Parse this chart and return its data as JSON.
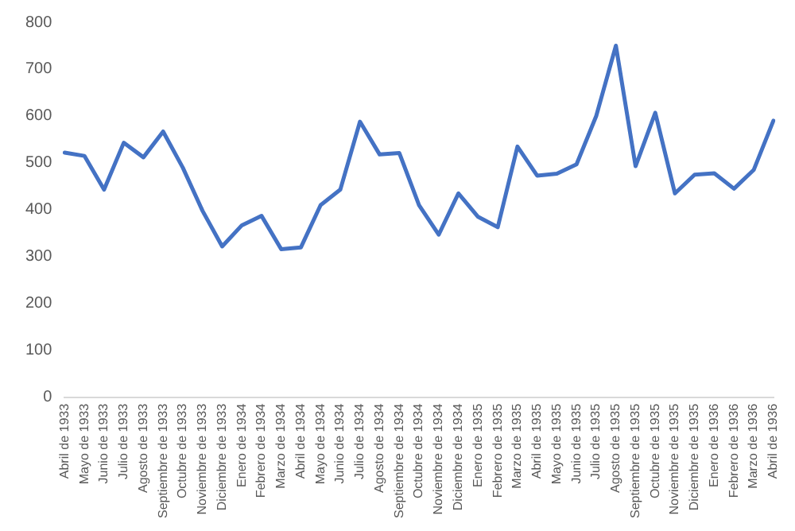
{
  "chart_data": {
    "type": "line",
    "categories": [
      "Abril de 1933",
      "Mayo de 1933",
      "Junio de 1933",
      "Julio de 1933",
      "Agosto de 1933",
      "Septiembre de 1933",
      "Octubre de 1933",
      "Noviembre de 1933",
      "Diciembre de 1933",
      "Enero de 1934",
      "Febrero de 1934",
      "Marzo de 1934",
      "Abril de 1934",
      "Mayo de 1934",
      "Junio de 1934",
      "Julio de 1934",
      "Agosto de 1934",
      "Septiembre de 1934",
      "Octubre de 1934",
      "Noviembre de 1934",
      "Diciembre de 1934",
      "Enero de 1935",
      "Febrero de 1935",
      "Marzo de 1935",
      "Abril de 1935",
      "Mayo de 1935",
      "Junio de 1935",
      "Julio de 1935",
      "Agosto de 1935",
      "Septiembre de 1935",
      "Octubre de 1935",
      "Noviembre de 1935",
      "Diciembre de 1935",
      "Enero de 1936",
      "Febrero de 1936",
      "Marzo de 1936",
      "Abril de 1936"
    ],
    "series": [
      {
        "color": "#4472c4",
        "values": [
          522,
          515,
          443,
          543,
          512,
          567,
          490,
          398,
          322,
          367,
          387,
          316,
          320,
          410,
          443,
          588,
          518,
          521,
          410,
          347,
          435,
          385,
          363,
          535,
          473,
          477,
          497,
          600,
          750,
          493,
          607,
          435,
          475,
          478,
          445,
          485,
          590
        ]
      }
    ],
    "ylim": [
      0,
      800
    ],
    "yticks": [
      0,
      100,
      200,
      300,
      400,
      500,
      600,
      700,
      800
    ],
    "grid": false,
    "legend": false,
    "marker": "none",
    "line_style": "solid"
  }
}
